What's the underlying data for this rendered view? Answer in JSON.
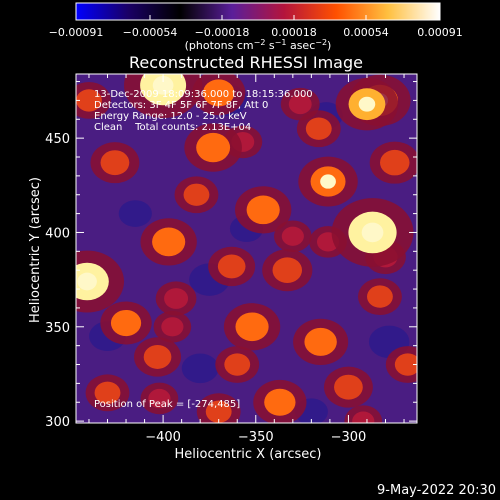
{
  "chart_data": {
    "type": "heatmap",
    "title": "Reconstructed RHESSI Image",
    "xlabel": "Heliocentric X (arcsec)",
    "ylabel": "Heliocentric Y (arcsec)",
    "xlim": [
      -447,
      -263
    ],
    "ylim": [
      299,
      484
    ],
    "x_ticks": [
      -400,
      -350,
      -300
    ],
    "x_tick_labels": [
      "−400",
      "−350",
      "−300"
    ],
    "y_ticks": [
      300,
      350,
      400,
      450
    ],
    "y_tick_labels": [
      "300",
      "350",
      "400",
      "450"
    ],
    "colorbar": {
      "range": [
        -0.00091,
        0.00091
      ],
      "ticks": [
        -0.00091,
        -0.00054,
        -0.00018,
        0.00018,
        0.00054,
        0.00091
      ],
      "tick_labels": [
        "−0.00091",
        "−0.00054",
        "−0.00018",
        "0.00018",
        "0.00054",
        "0.00091"
      ],
      "units_parts": [
        "(photons cm",
        "−2",
        " s",
        "−1",
        " asec",
        "−2",
        ")"
      ],
      "colors": [
        "#0000ff",
        "#1a0066",
        "#000000",
        "#5a1e9a",
        "#b4143c",
        "#ff5000",
        "#ffc040",
        "#ffffff"
      ]
    },
    "annotations": [
      "13-Dec-2009 18:09:36.000 to 18:15:36.000",
      "Detectors: 3F 4F 5F 6F 7F 8F, Att 0",
      "Energy Range: 12.0 - 25.0 keV",
      "Clean    Total counts: 2.13E+04"
    ],
    "peak_label": "Position of Peak = [-274,485]",
    "hot_spots": [
      {
        "x": -287,
        "y": 400,
        "value": 0.00091
      },
      {
        "x": -400,
        "y": 478,
        "value": 0.00085
      },
      {
        "x": -441,
        "y": 374,
        "value": 0.00078
      },
      {
        "x": -290,
        "y": 468,
        "value": 0.0006
      },
      {
        "x": -283,
        "y": 470,
        "value": 0.00058
      },
      {
        "x": -311,
        "y": 427,
        "value": 0.00055
      },
      {
        "x": -373,
        "y": 445,
        "value": 0.00052
      },
      {
        "x": -346,
        "y": 412,
        "value": 0.0005
      },
      {
        "x": -397,
        "y": 395,
        "value": 0.0005
      },
      {
        "x": -352,
        "y": 350,
        "value": 0.0005
      },
      {
        "x": -315,
        "y": 342,
        "value": 0.00048
      },
      {
        "x": -337,
        "y": 310,
        "value": 0.00045
      },
      {
        "x": -370,
        "y": 474,
        "value": 0.00045
      },
      {
        "x": -420,
        "y": 352,
        "value": 0.00042
      },
      {
        "x": -333,
        "y": 380,
        "value": 0.0004
      },
      {
        "x": -275,
        "y": 437,
        "value": 0.0004
      },
      {
        "x": -300,
        "y": 318,
        "value": 0.00038
      },
      {
        "x": -426,
        "y": 437,
        "value": 0.00038
      },
      {
        "x": -363,
        "y": 382,
        "value": 0.00035
      },
      {
        "x": -403,
        "y": 334,
        "value": 0.00035
      },
      {
        "x": -382,
        "y": 420,
        "value": 0.0003
      },
      {
        "x": -283,
        "y": 366,
        "value": 0.0003
      },
      {
        "x": -370,
        "y": 305,
        "value": 0.0003
      },
      {
        "x": -430,
        "y": 315,
        "value": 0.0003
      },
      {
        "x": -268,
        "y": 330,
        "value": 0.0003
      },
      {
        "x": -316,
        "y": 455,
        "value": 0.0003
      },
      {
        "x": -440,
        "y": 470,
        "value": 0.0003
      },
      {
        "x": -360,
        "y": 330,
        "value": 0.0003
      },
      {
        "x": -280,
        "y": 387,
        "value": 0.00025
      },
      {
        "x": -393,
        "y": 365,
        "value": 0.00025
      },
      {
        "x": -357,
        "y": 448,
        "value": 0.00022
      },
      {
        "x": -326,
        "y": 468,
        "value": 0.00022
      },
      {
        "x": -292,
        "y": 300,
        "value": 0.0002
      },
      {
        "x": -402,
        "y": 312,
        "value": 0.0002
      },
      {
        "x": -330,
        "y": 398,
        "value": 0.0002
      },
      {
        "x": -395,
        "y": 350,
        "value": 0.0002
      },
      {
        "x": -311,
        "y": 395,
        "value": 0.0002
      }
    ],
    "cold_spots": [
      {
        "x": -375,
        "y": 375,
        "value": -0.0003
      },
      {
        "x": -365,
        "y": 470,
        "value": -0.00028
      },
      {
        "x": -278,
        "y": 342,
        "value": -0.0003
      },
      {
        "x": -312,
        "y": 462,
        "value": -0.0002
      },
      {
        "x": -415,
        "y": 410,
        "value": -0.0002
      },
      {
        "x": -430,
        "y": 345,
        "value": -0.00025
      },
      {
        "x": -355,
        "y": 402,
        "value": -0.0002
      },
      {
        "x": -380,
        "y": 328,
        "value": -0.00025
      },
      {
        "x": -320,
        "y": 305,
        "value": -0.0002
      }
    ]
  },
  "footer": {
    "timestamp": "9-May-2022 20:30"
  }
}
